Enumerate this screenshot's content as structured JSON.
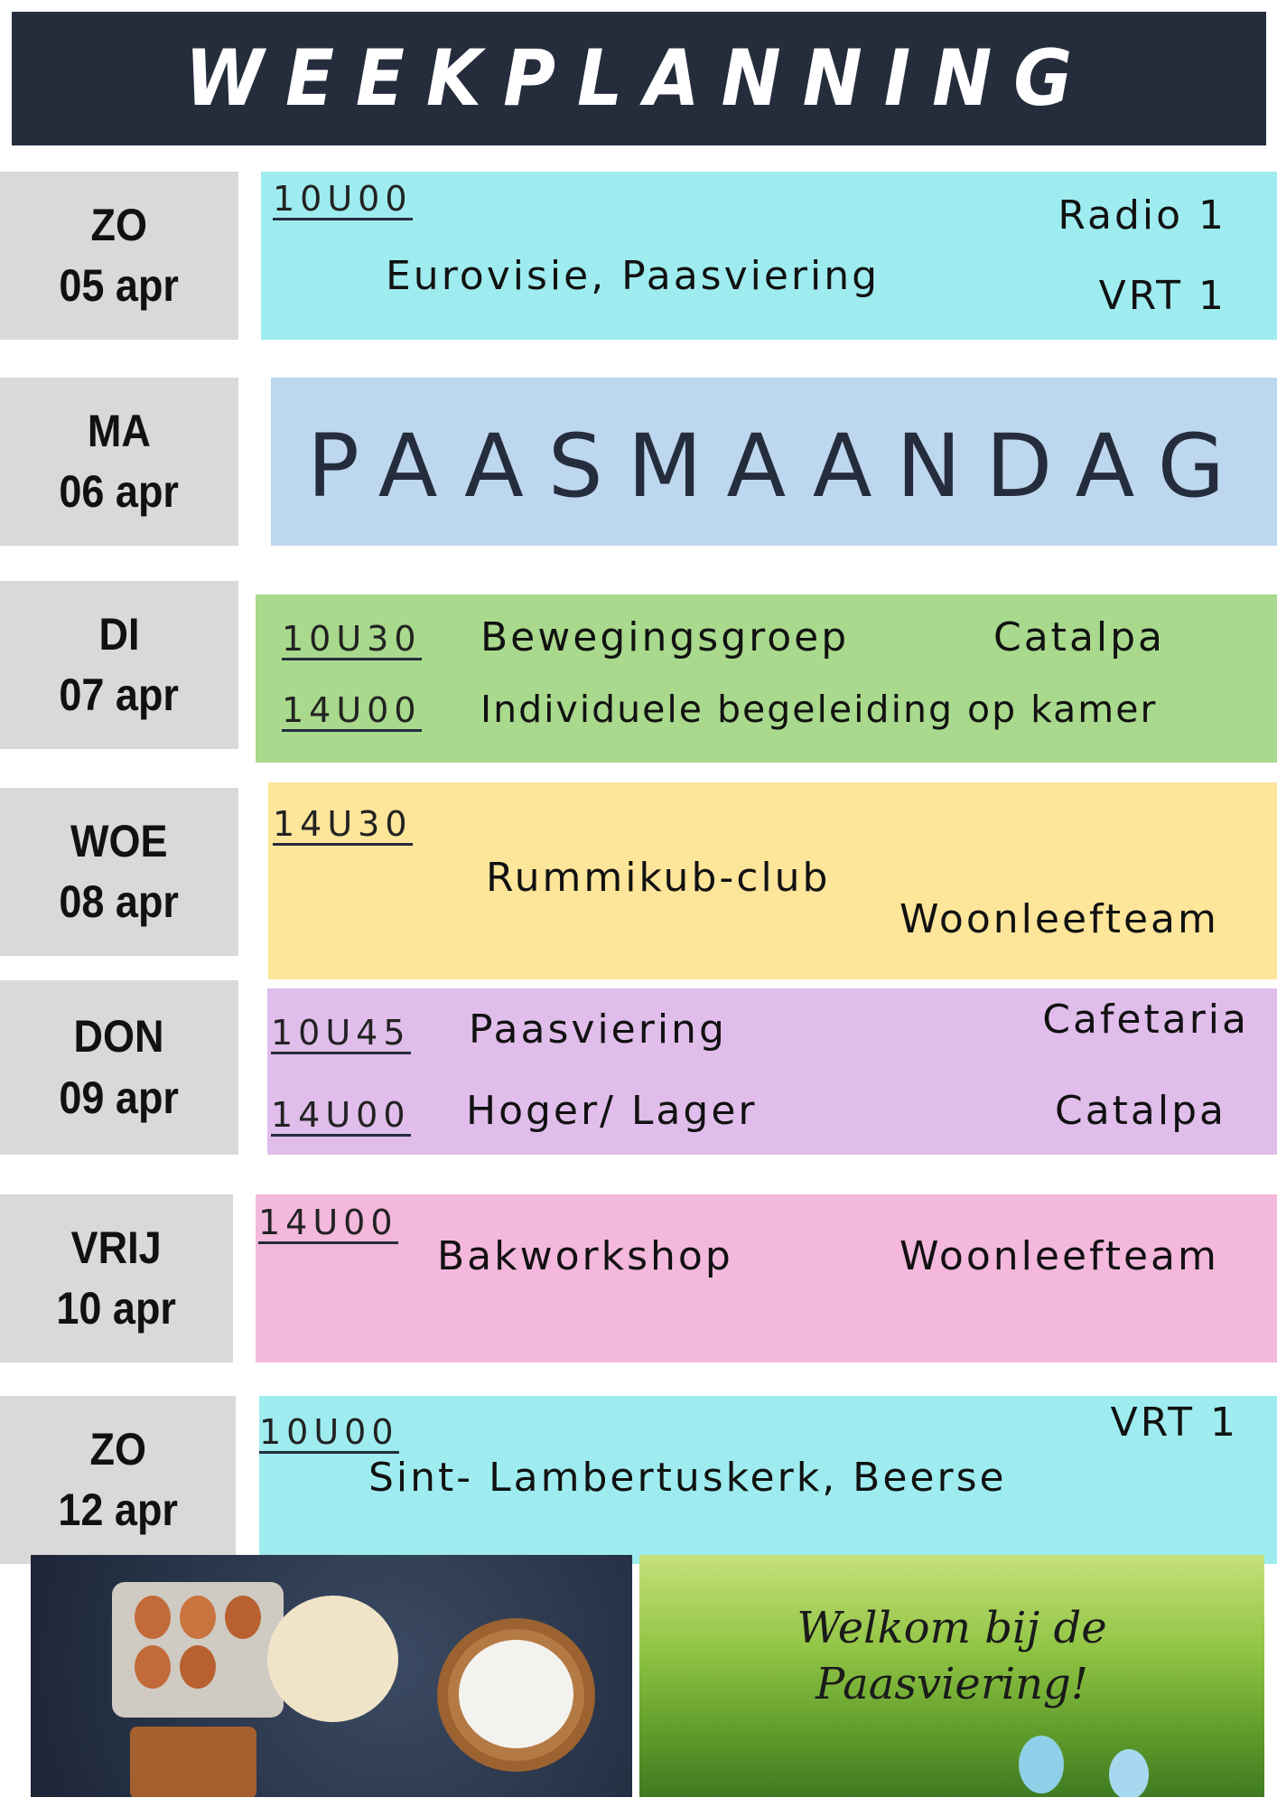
{
  "title": "WEEKPLANNING",
  "colors": {
    "header": "#252d3d",
    "day_bg": "#d9d9d9",
    "cyan": "#9eecef",
    "blue": "#bdd7ef",
    "green": "#a8d98c",
    "yellow": "#fde59a",
    "purple": "#e0bdea",
    "pink": "#f3b8dc"
  },
  "days": [
    {
      "day": "ZO",
      "date": "05 apr",
      "items": [
        {
          "time": "10U00",
          "event": "Eurovisie, Paasviering",
          "location": [
            "Radio 1",
            "VRT 1"
          ]
        }
      ]
    },
    {
      "day": "MA",
      "date": "06 apr",
      "banner": "PAASMAANDAG"
    },
    {
      "day": "DI",
      "date": "07 apr",
      "items": [
        {
          "time": "10U30",
          "event": "Bewegingsgroep",
          "location": "Catalpa"
        },
        {
          "time": "14U00",
          "event": "Individuele begeleiding op kamer"
        }
      ]
    },
    {
      "day": "WOE",
      "date": "08 apr",
      "items": [
        {
          "time": "14U30",
          "event": "Rummikub-club",
          "location": "Woonleefteam"
        }
      ]
    },
    {
      "day": "DON",
      "date": "09 apr",
      "items": [
        {
          "time": "10U45",
          "event": "Paasviering",
          "location": "Cafetaria"
        },
        {
          "time": "14U00",
          "event": "Hoger/ Lager",
          "location": "Catalpa"
        }
      ]
    },
    {
      "day": "VRIJ",
      "date": "10 apr",
      "items": [
        {
          "time": "14U00",
          "event": "Bakworkshop",
          "location": "Woonleefteam"
        }
      ]
    },
    {
      "day": "ZO",
      "date": "12 apr",
      "items": [
        {
          "time": "10U00",
          "event": "Sint- Lambertuskerk, Beerse",
          "location": "VRT 1"
        }
      ]
    }
  ],
  "photos": {
    "baking": "baking-ingredients-photo",
    "easter": "Welkom bij de Paasviering!"
  }
}
